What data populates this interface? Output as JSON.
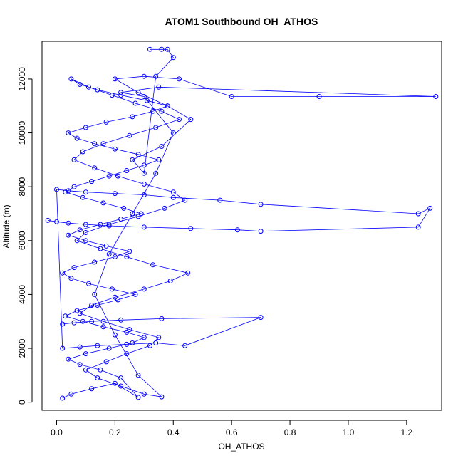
{
  "chart_data": {
    "type": "scatter",
    "title": "ATOM1 Southbound OH_ATHOS",
    "xlabel": "OH_ATHOS",
    "ylabel": "Altitude (m)",
    "xlim": [
      -0.05,
      1.32
    ],
    "ylim": [
      -300,
      13400
    ],
    "x_ticks": [
      0.0,
      0.2,
      0.4,
      0.6,
      0.8,
      1.0,
      1.2
    ],
    "x_tick_labels": [
      "0.0",
      "0.2",
      "0.4",
      "0.6",
      "0.8",
      "1.0",
      "1.2"
    ],
    "y_ticks": [
      0,
      2000,
      4000,
      6000,
      8000,
      10000,
      12000
    ],
    "y_tick_labels": [
      "0",
      "2000",
      "4000",
      "6000",
      "8000",
      "10000",
      "12000"
    ],
    "grid": false,
    "legend": "none",
    "marker": "open-circle",
    "connected": true,
    "series_color": "#0000ff",
    "series": [
      {
        "x": [
          0.02,
          0.05,
          0.12,
          0.2,
          0.28,
          0.22,
          0.15,
          0.08,
          0.04,
          0.1,
          0.18,
          0.26,
          0.3,
          0.24,
          0.16,
          0.09,
          0.03,
          0.07,
          0.14,
          0.21,
          0.27,
          0.19,
          0.11,
          0.05,
          0.02,
          0.06,
          0.13,
          0.2,
          0.25,
          0.17,
          0.1,
          0.04,
          0.08,
          0.15,
          0.22,
          0.29,
          0.23,
          0.16,
          0.09,
          0.03,
          0.06,
          0.12,
          0.18,
          0.24,
          0.3,
          0.35,
          0.28,
          0.2,
          0.13,
          0.07,
          0.04,
          0.1,
          0.17,
          0.26,
          0.33,
          0.38,
          0.31,
          0.22,
          0.14,
          0.08,
          0.05,
          0.11,
          0.19,
          0.27,
          0.36,
          0.42,
          0.34,
          0.25,
          0.16,
          0.09,
          0.06,
          0.13,
          0.21,
          0.3,
          0.4,
          0.44,
          0.37,
          0.28,
          0.18,
          0.1,
          0.07,
          0.15,
          0.24,
          0.33,
          0.45,
          0.39,
          0.3,
          0.2,
          0.12,
          0.08,
          0.16,
          0.25,
          0.35,
          0.32,
          0.24,
          0.17,
          0.1,
          0.14,
          0.22,
          0.3,
          0.36,
          0.28,
          0.2,
          0.13,
          0.18,
          0.26,
          0.34,
          0.4,
          0.3,
          0.22,
          0.35,
          1.3,
          0.9,
          0.6,
          0.42,
          0.3,
          0.2,
          0.28,
          0.38,
          0.46,
          0.36,
          0.26,
          0.3,
          0.34,
          0.4,
          0.38,
          0.32,
          0.36
        ],
        "y": [
          150,
          300,
          500,
          700,
          180,
          900,
          1200,
          1400,
          1600,
          1800,
          2000,
          2200,
          2400,
          2600,
          2800,
          3000,
          3200,
          3400,
          3600,
          3800,
          4000,
          4200,
          4400,
          4600,
          4800,
          5000,
          5200,
          5400,
          5600,
          5800,
          6000,
          6200,
          6400,
          6600,
          6800,
          7000,
          7200,
          7400,
          7600,
          7800,
          8000,
          8200,
          8400,
          8600,
          8800,
          9000,
          9200,
          9400,
          9600,
          9800,
          10000,
          10200,
          10400,
          10600,
          10800,
          11000,
          11200,
          11400,
          11600,
          11800,
          12000,
          11700,
          11400,
          11100,
          10800,
          10500,
          10200,
          9900,
          9600,
          9300,
          9000,
          8700,
          8400,
          8100,
          7800,
          7500,
          7200,
          6900,
          6600,
          6300,
          6000,
          5700,
          5400,
          5100,
          4800,
          4500,
          4200,
          3900,
          3600,
          3300,
          3000,
          2700,
          2400,
          2100,
          1800,
          1500,
          1200,
          900,
          600,
          300,
          200,
          1000,
          2500,
          4000,
          5500,
          7000,
          8500,
          10000,
          11350,
          11500,
          11700,
          11350,
          11350,
          11350,
          12000,
          12100,
          12000,
          11500,
          11000,
          10500,
          9500,
          9000,
          8500,
          12100,
          12800,
          13100,
          13100,
          13100
        ]
      },
      {
        "x": [
          -0.03,
          0.0,
          0.04,
          0.1,
          0.18,
          0.3,
          0.46,
          0.62,
          0.7,
          1.24,
          1.28,
          1.24,
          0.7,
          0.56,
          0.4,
          0.3,
          0.2,
          0.1,
          0.04,
          0.0,
          0.02,
          0.08,
          0.14,
          0.24,
          0.34,
          0.44,
          0.7,
          0.36,
          0.22,
          0.12,
          0.06,
          0.02
        ],
        "y": [
          6750,
          6700,
          6650,
          6600,
          6550,
          6500,
          6450,
          6400,
          6350,
          6500,
          7200,
          7000,
          7350,
          7500,
          7600,
          7700,
          7750,
          7800,
          7850,
          7900,
          2000,
          2050,
          2100,
          2150,
          2200,
          2100,
          3150,
          3100,
          3050,
          3000,
          2950,
          2900
        ]
      }
    ]
  }
}
